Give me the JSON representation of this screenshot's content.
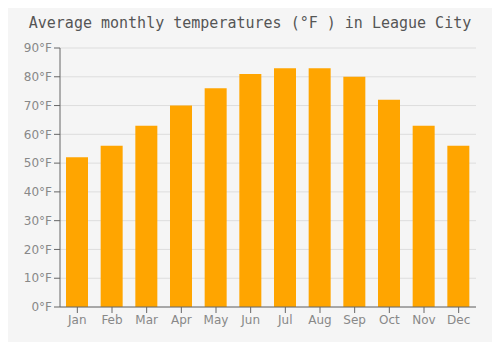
{
  "chart_data": {
    "type": "bar",
    "title": "Average monthly temperatures (°F ) in League City",
    "categories": [
      "Jan",
      "Feb",
      "Mar",
      "Apr",
      "May",
      "Jun",
      "Jul",
      "Aug",
      "Sep",
      "Oct",
      "Nov",
      "Dec"
    ],
    "values": [
      52,
      56,
      63,
      70,
      76,
      81,
      83,
      83,
      80,
      72,
      63,
      56
    ],
    "color": "#FFA500",
    "ylim": [
      0,
      90
    ],
    "yticks": [
      {
        "value": 0,
        "label": "0°F"
      },
      {
        "value": 10,
        "label": "10°F"
      },
      {
        "value": 20,
        "label": "20°F"
      },
      {
        "value": 30,
        "label": "30°F"
      },
      {
        "value": 40,
        "label": "40°F"
      },
      {
        "value": 50,
        "label": "50°F"
      },
      {
        "value": 60,
        "label": "60°F"
      },
      {
        "value": 70,
        "label": "70°F"
      },
      {
        "value": 80,
        "label": "80°F"
      },
      {
        "value": 90,
        "label": "90°F"
      }
    ],
    "grid": true
  }
}
